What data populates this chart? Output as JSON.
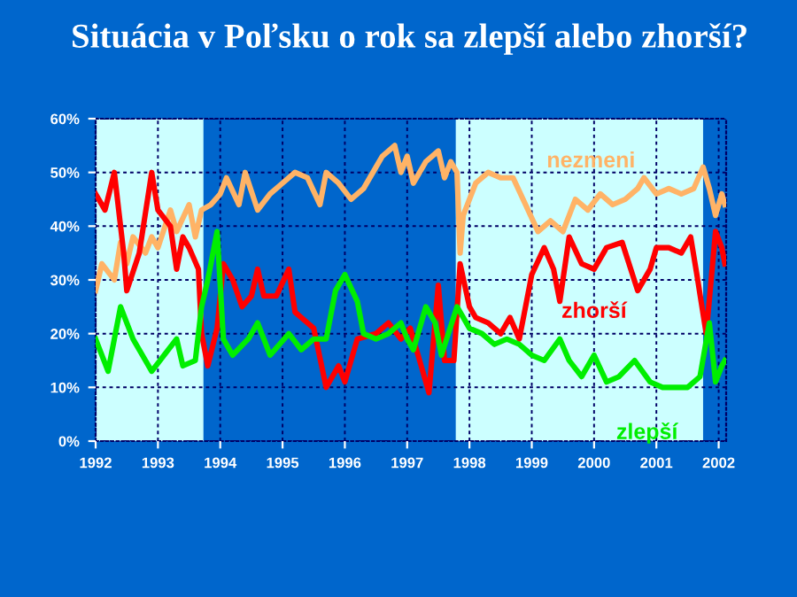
{
  "chart_data": {
    "type": "line",
    "title": "Situácia v Poľsku o rok sa zlepší alebo zhorší?",
    "xlim": [
      1992,
      2002.12
    ],
    "xticks": [
      1992,
      1993,
      1994,
      1995,
      1996,
      1997,
      1998,
      1999,
      2000,
      2001,
      2002
    ],
    "ylim": [
      0,
      60
    ],
    "yticks": [
      {
        "value": 0,
        "label": "0%"
      },
      {
        "value": 10,
        "label": "10%"
      },
      {
        "value": 20,
        "label": "20%"
      },
      {
        "value": 30,
        "label": "30%"
      },
      {
        "value": 40,
        "label": "40%"
      },
      {
        "value": 50,
        "label": "50%"
      },
      {
        "value": 60,
        "label": "60%"
      }
    ],
    "grid": true,
    "legend": false,
    "line_style": "solid",
    "marker": "none",
    "bands": [
      {
        "axis": "x",
        "from": 1992,
        "to": 1993.73,
        "label": null,
        "color": "#ccffff"
      },
      {
        "axis": "x",
        "from": 1997.78,
        "to": 2001.75,
        "label": null,
        "color": "#ccffff"
      }
    ],
    "series": [
      {
        "name": "nezmeni",
        "color": "#ffb366",
        "x": [
          1992.0,
          1992.1,
          1992.3,
          1992.4,
          1992.5,
          1992.6,
          1992.8,
          1992.9,
          1993.0,
          1993.2,
          1993.3,
          1993.5,
          1993.6,
          1993.7,
          1993.85,
          1994.0,
          1994.1,
          1994.3,
          1994.4,
          1994.6,
          1994.8,
          1995.0,
          1995.2,
          1995.4,
          1995.6,
          1995.7,
          1995.9,
          1996.1,
          1996.3,
          1996.5,
          1996.6,
          1996.8,
          1996.9,
          1997.0,
          1997.1,
          1997.3,
          1997.5,
          1997.6,
          1997.7,
          1997.8,
          1997.85,
          1997.9,
          1998.1,
          1998.3,
          1998.5,
          1998.7,
          1998.9,
          1999.1,
          1999.3,
          1999.5,
          1999.7,
          1999.9,
          2000.1,
          2000.3,
          2000.5,
          2000.7,
          2000.8,
          2001.0,
          2001.2,
          2001.4,
          2001.6,
          2001.75,
          2001.85,
          2001.95,
          2002.05,
          2002.1
        ],
        "values": [
          28,
          33,
          30,
          37,
          33,
          38,
          35,
          38,
          36,
          43,
          39,
          44,
          38,
          43,
          44,
          46,
          49,
          44,
          50,
          43,
          46,
          48,
          50,
          49,
          44,
          50,
          48,
          45,
          47,
          51,
          53,
          55,
          50,
          53,
          48,
          52,
          54,
          49,
          52,
          50,
          35,
          42,
          48,
          50,
          49,
          49,
          44,
          39,
          41,
          39,
          45,
          43,
          46,
          44,
          45,
          47,
          49,
          46,
          47,
          46,
          47,
          51,
          47,
          42,
          46,
          44
        ]
      },
      {
        "name": "zhorší",
        "color": "#ff0000",
        "x": [
          1992.0,
          1992.15,
          1992.3,
          1992.45,
          1992.5,
          1992.7,
          1992.9,
          1993.0,
          1993.2,
          1993.3,
          1993.4,
          1993.5,
          1993.65,
          1993.7,
          1993.8,
          1993.95,
          1994.05,
          1994.2,
          1994.35,
          1994.5,
          1994.6,
          1994.7,
          1994.9,
          1995.1,
          1995.2,
          1995.4,
          1995.5,
          1995.7,
          1995.9,
          1996.0,
          1996.2,
          1996.5,
          1996.7,
          1996.9,
          1997.05,
          1997.2,
          1997.35,
          1997.5,
          1997.6,
          1997.75,
          1997.85,
          1998.0,
          1998.1,
          1998.3,
          1998.5,
          1998.65,
          1998.8,
          1999.0,
          1999.2,
          1999.35,
          1999.45,
          1999.6,
          1999.8,
          2000.0,
          2000.2,
          2000.45,
          2000.7,
          2000.9,
          2001.0,
          2001.2,
          2001.4,
          2001.55,
          2001.65,
          2001.8,
          2001.95,
          2002.05,
          2002.1
        ],
        "values": [
          46,
          43,
          50,
          35,
          28,
          35,
          50,
          43,
          40,
          32,
          38,
          36,
          32,
          20,
          14,
          21,
          33,
          30,
          25,
          27,
          32,
          27,
          27,
          32,
          24,
          22,
          21,
          10,
          14,
          11,
          19,
          20,
          22,
          19,
          21,
          15,
          9,
          29,
          15,
          15,
          33,
          25,
          23,
          22,
          20,
          23,
          19,
          31,
          36,
          32,
          26,
          38,
          33,
          32,
          36,
          37,
          28,
          32,
          36,
          36,
          35,
          38,
          31,
          20,
          39,
          36,
          33
        ]
      },
      {
        "name": "zlepší",
        "color": "#00ee00",
        "x": [
          1992.0,
          1992.2,
          1992.4,
          1992.6,
          1992.8,
          1992.9,
          1993.1,
          1993.3,
          1993.4,
          1993.6,
          1993.7,
          1993.8,
          1993.95,
          1994.05,
          1994.2,
          1994.45,
          1994.6,
          1994.8,
          1995.1,
          1995.3,
          1995.5,
          1995.7,
          1995.85,
          1996.0,
          1996.2,
          1996.3,
          1996.5,
          1996.7,
          1996.9,
          1997.0,
          1997.1,
          1997.3,
          1997.45,
          1997.55,
          1997.8,
          1998.0,
          1998.2,
          1998.4,
          1998.6,
          1998.8,
          1999.0,
          1999.2,
          1999.45,
          1999.6,
          1999.8,
          2000.0,
          2000.2,
          2000.4,
          2000.65,
          2000.9,
          2001.1,
          2001.3,
          2001.5,
          2001.7,
          2001.85,
          2001.95,
          2002.05,
          2002.1
        ],
        "values": [
          19,
          13,
          25,
          19,
          15,
          13,
          16,
          19,
          14,
          15,
          25,
          30,
          39,
          19,
          16,
          19,
          22,
          16,
          20,
          17,
          19,
          19,
          28,
          31,
          26,
          20,
          19,
          20,
          22,
          19,
          17,
          25,
          22,
          16,
          25,
          21,
          20,
          18,
          19,
          18,
          16,
          15,
          19,
          15,
          12,
          16,
          11,
          12,
          15,
          11,
          10,
          10,
          10,
          12,
          22,
          11,
          14,
          15
        ]
      }
    ]
  }
}
